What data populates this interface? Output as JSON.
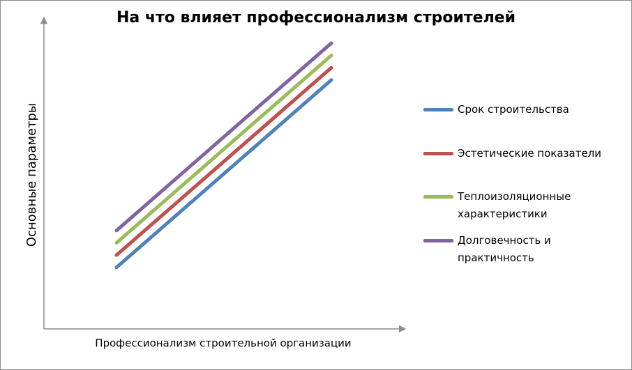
{
  "chart_data": {
    "type": "line",
    "title": "На что влияет профессионализм строителей",
    "x_label": "Профессионализм строительной организации",
    "y_label": "Основные параметры",
    "categories": [
      null,
      null
    ],
    "series": [
      {
        "name": "Срок строительства",
        "color": "#4f81bd",
        "values": [
          20,
          81
        ]
      },
      {
        "name": "Эстетические показатели",
        "color": "#c0504d",
        "values": [
          24,
          85
        ]
      },
      {
        "name": "Теплоизоляционные характеристики",
        "color": "#9bbb59",
        "values": [
          28,
          89
        ]
      },
      {
        "name": "Долговечность и практичность",
        "color": "#8064a2",
        "values": [
          32,
          93
        ]
      }
    ],
    "ylim": [
      0,
      100
    ],
    "legend": "right"
  }
}
